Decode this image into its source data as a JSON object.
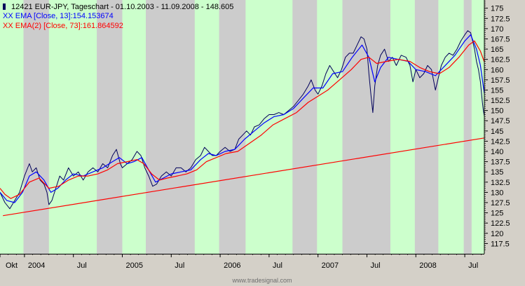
{
  "chart_data": {
    "type": "line",
    "title": "12421  EUR-JPY, Tageschart - 01.10.2003 - 11.09.2008 - 148.605",
    "legend": [
      {
        "label": "XX EMA [Close, 13]:154.153674",
        "color": "#0000ff"
      },
      {
        "label": "XX EMA(2) [Close, 73]:161.864592",
        "color": "#ff0000"
      }
    ],
    "xlabel": "",
    "ylabel": "",
    "ylim": [
      115,
      177
    ],
    "y_ticks": [
      "175",
      "172.5",
      "170",
      "167.5",
      "165",
      "162.5",
      "160",
      "157.5",
      "155",
      "152.5",
      "150",
      "147.5",
      "145",
      "142.5",
      "140",
      "137.5",
      "135",
      "132.5",
      "130",
      "127.5",
      "125",
      "122.5",
      "120",
      "117.5"
    ],
    "y_tick_values": [
      175,
      172.5,
      170,
      167.5,
      165,
      162.5,
      160,
      157.5,
      155,
      152.5,
      150,
      147.5,
      145,
      142.5,
      140,
      137.5,
      135,
      132.5,
      130,
      127.5,
      125,
      122.5,
      120,
      117.5
    ],
    "x_time_range": [
      2003.75,
      2008.7
    ],
    "x_ticks": [
      {
        "label": "Okt",
        "t": 2003.75
      },
      {
        "label": "2004",
        "t": 2004.0
      },
      {
        "label": "Jul",
        "t": 2004.5
      },
      {
        "label": "2005",
        "t": 2005.0
      },
      {
        "label": "Jul",
        "t": 2005.5
      },
      {
        "label": "2006",
        "t": 2006.0
      },
      {
        "label": "Jul",
        "t": 2006.5
      },
      {
        "label": "2007",
        "t": 2007.0
      },
      {
        "label": "Jul",
        "t": 2007.5
      },
      {
        "label": "2008",
        "t": 2008.0
      },
      {
        "label": "Jul",
        "t": 2008.5
      }
    ],
    "bands": [
      {
        "start": 2003.75,
        "end": 2003.99,
        "color": "#ccffcc"
      },
      {
        "start": 2003.99,
        "end": 2004.25,
        "color": "#cccccc"
      },
      {
        "start": 2004.25,
        "end": 2004.74,
        "color": "#ccffcc"
      },
      {
        "start": 2004.74,
        "end": 2005.0,
        "color": "#cccccc"
      },
      {
        "start": 2005.0,
        "end": 2005.24,
        "color": "#ccffcc"
      },
      {
        "start": 2005.24,
        "end": 2005.74,
        "color": "#cccccc"
      },
      {
        "start": 2005.74,
        "end": 2005.99,
        "color": "#ccffcc"
      },
      {
        "start": 2005.99,
        "end": 2006.26,
        "color": "#cccccc"
      },
      {
        "start": 2006.26,
        "end": 2006.74,
        "color": "#ccffcc"
      },
      {
        "start": 2006.74,
        "end": 2006.99,
        "color": "#cccccc"
      },
      {
        "start": 2006.99,
        "end": 2007.25,
        "color": "#ccffcc"
      },
      {
        "start": 2007.25,
        "end": 2007.74,
        "color": "#cccccc"
      },
      {
        "start": 2007.74,
        "end": 2007.99,
        "color": "#ccffcc"
      },
      {
        "start": 2007.99,
        "end": 2008.23,
        "color": "#cccccc"
      },
      {
        "start": 2008.23,
        "end": 2008.49,
        "color": "#ccffcc"
      },
      {
        "start": 2008.49,
        "end": 2008.57,
        "color": "#cccccc"
      },
      {
        "start": 2008.57,
        "end": 2008.7,
        "color": "#ccffcc"
      }
    ],
    "series": [
      {
        "name": "EUR-JPY Close",
        "color": "#00005a",
        "points": [
          [
            2003.75,
            130
          ],
          [
            2003.8,
            127.5
          ],
          [
            2003.85,
            126
          ],
          [
            2003.9,
            128
          ],
          [
            2003.95,
            130
          ],
          [
            2004.0,
            134
          ],
          [
            2004.05,
            137
          ],
          [
            2004.08,
            135
          ],
          [
            2004.12,
            136
          ],
          [
            2004.16,
            133
          ],
          [
            2004.2,
            132
          ],
          [
            2004.23,
            130
          ],
          [
            2004.25,
            127
          ],
          [
            2004.28,
            128
          ],
          [
            2004.32,
            131
          ],
          [
            2004.36,
            134
          ],
          [
            2004.4,
            133
          ],
          [
            2004.45,
            136
          ],
          [
            2004.5,
            134
          ],
          [
            2004.55,
            135
          ],
          [
            2004.6,
            133
          ],
          [
            2004.65,
            135
          ],
          [
            2004.7,
            136
          ],
          [
            2004.75,
            135
          ],
          [
            2004.8,
            137
          ],
          [
            2004.85,
            136
          ],
          [
            2004.9,
            139
          ],
          [
            2004.94,
            140.5
          ],
          [
            2004.98,
            137
          ],
          [
            2005.0,
            136
          ],
          [
            2005.05,
            137
          ],
          [
            2005.1,
            138
          ],
          [
            2005.15,
            140
          ],
          [
            2005.19,
            139
          ],
          [
            2005.23,
            136
          ],
          [
            2005.27,
            134
          ],
          [
            2005.31,
            131.5
          ],
          [
            2005.35,
            132
          ],
          [
            2005.4,
            134
          ],
          [
            2005.45,
            135
          ],
          [
            2005.5,
            134
          ],
          [
            2005.55,
            136
          ],
          [
            2005.6,
            136
          ],
          [
            2005.65,
            135
          ],
          [
            2005.7,
            136
          ],
          [
            2005.75,
            138
          ],
          [
            2005.8,
            139
          ],
          [
            2005.84,
            141
          ],
          [
            2005.88,
            140
          ],
          [
            2005.92,
            139
          ],
          [
            2005.96,
            139
          ],
          [
            2006.0,
            140
          ],
          [
            2006.05,
            141
          ],
          [
            2006.1,
            140
          ],
          [
            2006.15,
            140.5
          ],
          [
            2006.19,
            143
          ],
          [
            2006.23,
            144
          ],
          [
            2006.27,
            145
          ],
          [
            2006.31,
            144
          ],
          [
            2006.35,
            146
          ],
          [
            2006.4,
            146.5
          ],
          [
            2006.45,
            148
          ],
          [
            2006.5,
            149
          ],
          [
            2006.55,
            149
          ],
          [
            2006.6,
            149.5
          ],
          [
            2006.65,
            149
          ],
          [
            2006.7,
            150
          ],
          [
            2006.75,
            151
          ],
          [
            2006.8,
            152.5
          ],
          [
            2006.85,
            154
          ],
          [
            2006.9,
            156
          ],
          [
            2006.93,
            157.5
          ],
          [
            2006.97,
            155
          ],
          [
            2007.0,
            154
          ],
          [
            2007.04,
            156
          ],
          [
            2007.08,
            159
          ],
          [
            2007.12,
            161
          ],
          [
            2007.16,
            159.5
          ],
          [
            2007.2,
            158
          ],
          [
            2007.24,
            160
          ],
          [
            2007.28,
            163
          ],
          [
            2007.32,
            164
          ],
          [
            2007.36,
            164
          ],
          [
            2007.4,
            166
          ],
          [
            2007.44,
            168
          ],
          [
            2007.47,
            167.5
          ],
          [
            2007.5,
            165
          ],
          [
            2007.52,
            159
          ],
          [
            2007.54,
            154
          ],
          [
            2007.56,
            149.5
          ],
          [
            2007.58,
            156
          ],
          [
            2007.61,
            161
          ],
          [
            2007.64,
            163.5
          ],
          [
            2007.68,
            165
          ],
          [
            2007.72,
            162
          ],
          [
            2007.76,
            163
          ],
          [
            2007.8,
            161
          ],
          [
            2007.85,
            163.5
          ],
          [
            2007.9,
            163
          ],
          [
            2007.94,
            161
          ],
          [
            2007.97,
            157
          ],
          [
            2008.0,
            160
          ],
          [
            2008.04,
            158
          ],
          [
            2008.08,
            159
          ],
          [
            2008.12,
            161
          ],
          [
            2008.16,
            160
          ],
          [
            2008.2,
            155
          ],
          [
            2008.23,
            158
          ],
          [
            2008.26,
            161
          ],
          [
            2008.3,
            163
          ],
          [
            2008.34,
            164
          ],
          [
            2008.38,
            163.5
          ],
          [
            2008.42,
            165
          ],
          [
            2008.46,
            167
          ],
          [
            2008.5,
            168.5
          ],
          [
            2008.53,
            169.5
          ],
          [
            2008.56,
            169
          ],
          [
            2008.58,
            167
          ],
          [
            2008.6,
            165
          ],
          [
            2008.62,
            162
          ],
          [
            2008.64,
            160
          ],
          [
            2008.66,
            157
          ],
          [
            2008.68,
            152
          ],
          [
            2008.69,
            150
          ],
          [
            2008.7,
            148.605
          ]
        ]
      },
      {
        "name": "EMA [Close, 13]",
        "color": "#0000ff",
        "points": [
          [
            2003.75,
            130
          ],
          [
            2003.82,
            128
          ],
          [
            2003.9,
            127.5
          ],
          [
            2003.98,
            130
          ],
          [
            2004.05,
            134
          ],
          [
            2004.12,
            135
          ],
          [
            2004.2,
            133
          ],
          [
            2004.27,
            130
          ],
          [
            2004.34,
            131
          ],
          [
            2004.42,
            133
          ],
          [
            2004.5,
            134.5
          ],
          [
            2004.6,
            134
          ],
          [
            2004.7,
            135
          ],
          [
            2004.8,
            136
          ],
          [
            2004.9,
            137.5
          ],
          [
            2004.97,
            138.5
          ],
          [
            2005.05,
            137
          ],
          [
            2005.12,
            137.5
          ],
          [
            2005.2,
            138.5
          ],
          [
            2005.28,
            135
          ],
          [
            2005.34,
            132.5
          ],
          [
            2005.42,
            133.5
          ],
          [
            2005.5,
            134.5
          ],
          [
            2005.6,
            135
          ],
          [
            2005.7,
            135.5
          ],
          [
            2005.8,
            138
          ],
          [
            2005.88,
            139.5
          ],
          [
            2005.96,
            139
          ],
          [
            2006.05,
            140
          ],
          [
            2006.15,
            140.5
          ],
          [
            2006.25,
            143
          ],
          [
            2006.35,
            145
          ],
          [
            2006.45,
            147
          ],
          [
            2006.55,
            148.5
          ],
          [
            2006.65,
            149
          ],
          [
            2006.75,
            150.5
          ],
          [
            2006.85,
            153
          ],
          [
            2006.95,
            155.5
          ],
          [
            2007.05,
            155.5
          ],
          [
            2007.15,
            159
          ],
          [
            2007.25,
            159.5
          ],
          [
            2007.35,
            163
          ],
          [
            2007.45,
            166
          ],
          [
            2007.52,
            163
          ],
          [
            2007.58,
            157
          ],
          [
            2007.64,
            160.5
          ],
          [
            2007.72,
            163
          ],
          [
            2007.82,
            162.5
          ],
          [
            2007.92,
            162
          ],
          [
            2008.0,
            160
          ],
          [
            2008.1,
            159.5
          ],
          [
            2008.2,
            158.5
          ],
          [
            2008.3,
            161
          ],
          [
            2008.4,
            163.5
          ],
          [
            2008.5,
            167
          ],
          [
            2008.56,
            168.5
          ],
          [
            2008.62,
            165
          ],
          [
            2008.66,
            161
          ],
          [
            2008.7,
            154.15
          ]
        ]
      },
      {
        "name": "EMA(2) [Close, 73]",
        "color": "#ff0000",
        "points": [
          [
            2003.75,
            131
          ],
          [
            2003.8,
            129.5
          ],
          [
            2003.86,
            128.5
          ],
          [
            2003.95,
            129.5
          ],
          [
            2004.05,
            132.5
          ],
          [
            2004.15,
            133.5
          ],
          [
            2004.25,
            131
          ],
          [
            2004.35,
            131.5
          ],
          [
            2004.45,
            133
          ],
          [
            2004.55,
            134
          ],
          [
            2004.65,
            134
          ],
          [
            2004.75,
            134.5
          ],
          [
            2004.85,
            135.5
          ],
          [
            2004.95,
            137
          ],
          [
            2005.05,
            137.5
          ],
          [
            2005.15,
            138
          ],
          [
            2005.22,
            137
          ],
          [
            2005.3,
            134.5
          ],
          [
            2005.38,
            133
          ],
          [
            2005.46,
            133.5
          ],
          [
            2005.56,
            134
          ],
          [
            2005.66,
            134.5
          ],
          [
            2005.76,
            135.5
          ],
          [
            2005.86,
            137.5
          ],
          [
            2005.96,
            138.5
          ],
          [
            2006.06,
            139.5
          ],
          [
            2006.18,
            140
          ],
          [
            2006.3,
            142
          ],
          [
            2006.42,
            144
          ],
          [
            2006.54,
            146.5
          ],
          [
            2006.66,
            148
          ],
          [
            2006.78,
            149.5
          ],
          [
            2006.9,
            152
          ],
          [
            2007.0,
            153.5
          ],
          [
            2007.1,
            155
          ],
          [
            2007.22,
            157.5
          ],
          [
            2007.34,
            160
          ],
          [
            2007.44,
            162.5
          ],
          [
            2007.52,
            163
          ],
          [
            2007.6,
            161.5
          ],
          [
            2007.7,
            162
          ],
          [
            2007.82,
            162.5
          ],
          [
            2007.94,
            162
          ],
          [
            2008.04,
            160.5
          ],
          [
            2008.14,
            159.5
          ],
          [
            2008.24,
            159
          ],
          [
            2008.34,
            160.5
          ],
          [
            2008.44,
            163
          ],
          [
            2008.54,
            166
          ],
          [
            2008.6,
            167
          ],
          [
            2008.66,
            164.5
          ],
          [
            2008.7,
            161.86
          ]
        ]
      },
      {
        "name": "Trend line",
        "color": "#ff0000",
        "points": [
          [
            2003.78,
            124.3
          ],
          [
            2008.7,
            143.3
          ]
        ]
      }
    ]
  },
  "watermark": "www.tradesignal.com"
}
